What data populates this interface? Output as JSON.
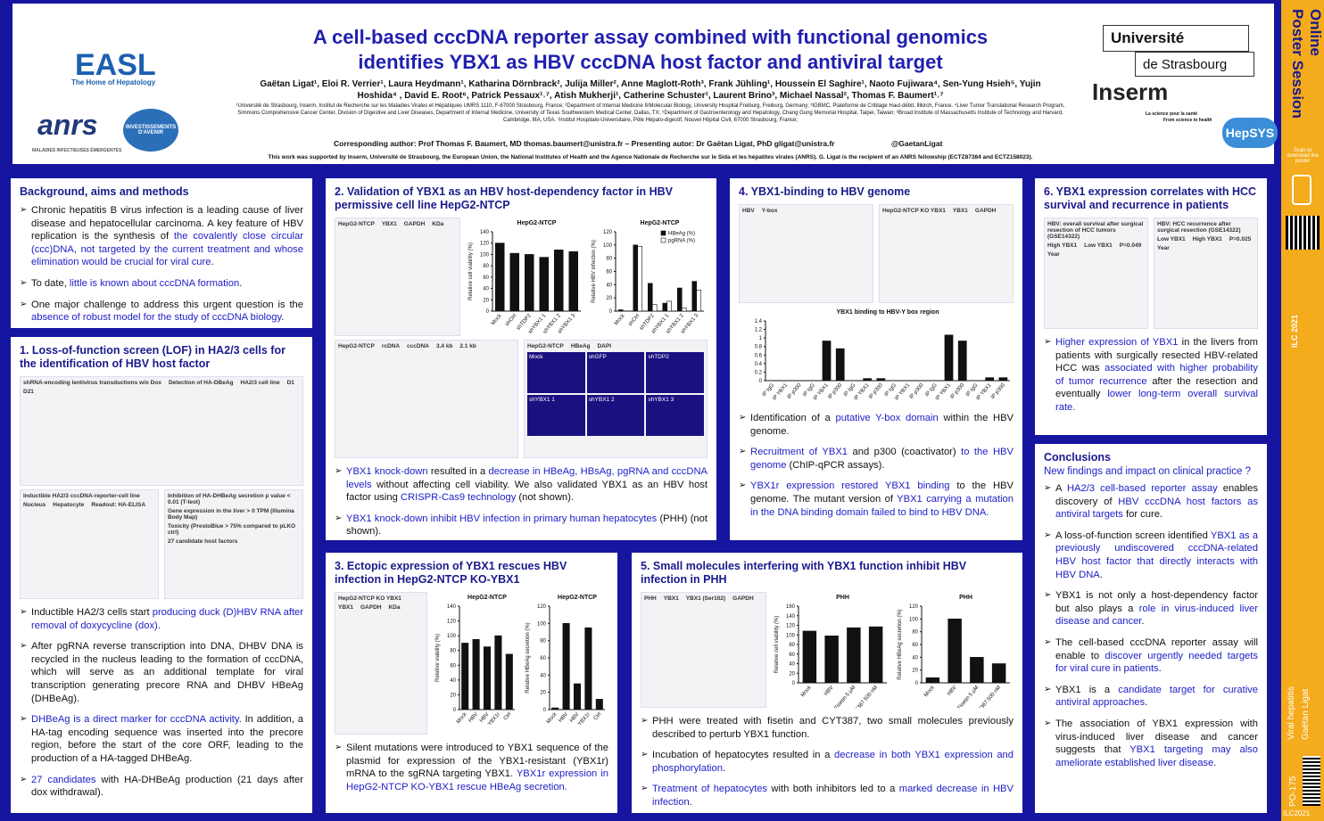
{
  "header": {
    "title": "A cell-based cccDNA reporter assay combined with functional genomics identifies YBX1 as HBV cccDNA host factor and antiviral target",
    "authors": "Gaëtan Ligat¹, Eloi R. Verrier¹, Laura Heydmann¹, Katharina Dörnbrack², Julija Miller², Anne Maglott-Roth³, Frank Jühling¹, Houssein El Saghire¹, Naoto Fujiwara⁴, Sen-Yung Hsieh⁵, Yujin Hoshida⁴ , David E. Root⁶, Patrick Pessaux¹˒⁷, Atish Mukherji¹, Catherine Schuster¹, Laurent Brino³, Michael Nassal², Thomas F. Baumert¹˒⁷",
    "affiliations": "¹Université de Strasbourg, Inserm, Institut de Recherche sur les Maladies Virales et Hépatiques UMRS 1110, F-67000 Strasbourg, France; ²Department of Internal Medicine II/Molecular Biology, University Hospital Freiburg, Freiburg, Germany; ³IGBMC, Plateforme de Criblage Haut-débit, Illkirch, France. ⁴Liver Tumor Translational Research Program, Simmons Comprehensive Cancer Center, Division of Digestive and Liver Diseases, Department of Internal Medicine, University of Texas Southwestern Medical Center, Dallas, TX; ⁵Department of Gastroenterology and Hepatology, Chang Gung Memorial Hospital, Taipei, Taiwan; ⁶Broad Institute of Massachusetts Institute of Technology and Harvard, Cambridge, MA, USA. ⁷Institut Hospitalo-Universitaire, Pôle Hépato-digestif, Nouvel Hôpital Civil, 67000 Strasbourg, France;",
    "corresponding": "Corresponding author: Prof Thomas F. Baumert, MD thomas.baumert@unistra.fr – Presenting autor: Dr Gaëtan Ligat, PhD gligat@unistra.fr",
    "twitter": "@GaetanLigat",
    "support": "This work was supported by Inserm, Université de Strasbourg, the European Union, the National Institutes of Health and the Agence Nationale de Recherche sur le Sida et les hépatites virales (ANRS). G. Ligat is the recipient of an ANRS fellowship (ECTZ87384 and ECTZ158023).",
    "logos": {
      "easl": "EASL",
      "easl_tag": "The Home of Hepatology",
      "anrs": "anrs",
      "anrs_tag": "MALADIES INFECTIEUSES ÉMERGENTES",
      "invest": "INVESTISSEMENTS D'AVENIR",
      "univ1": "Université",
      "univ2": "de Strasbourg",
      "inserm": "Inserm",
      "inserm_tag1": "La science pour la santé",
      "inserm_tag2": "From science to health",
      "hepsys": "HepSYS"
    }
  },
  "sidebar": {
    "brand": "Poster Session Online",
    "scan": "Scan to download the poster",
    "congress": "ILC 2021",
    "topic": "Viral hepatitis",
    "author": "Gaëtan Ligat",
    "code": "PO-175",
    "footer": "ILC2021"
  },
  "highlight_color": "#2020c8",
  "sections": [
    {
      "title": "Background, aims and methods",
      "bullets": [
        [
          "Chronic hepatitis B virus infection is a leading cause of liver disease and hepatocellular carcinoma. A key feature of HBV replication is the synthesis of ",
          {
            "text": "the covalently close circular (ccc)DNA, not targeted by the current treatment and whose elimination would be crucial for viral cure"
          },
          "."
        ],
        [
          "To date, ",
          {
            "text": "little is known about cccDNA formation"
          },
          "."
        ],
        [
          "One major challenge to address this urgent question is the ",
          {
            "text": "absence of robust model for the study of cccDNA biology"
          },
          "."
        ]
      ]
    },
    {
      "title": "1. Loss-of-function screen (LOF) in HA2/3 cells for the identification of HBV host factor",
      "figure": [
        [
          {
            "labels": [
              "shRNA-encoding lentivirus transductions w/o Dox",
              "Detection of HA-DBeAg",
              "HA2/3 cell line",
              "D1",
              "D21"
            ]
          }
        ],
        [
          {
            "labels": [
              "Inductible HA2/3 cccDNA-reporter-cell line",
              "Nucleus",
              "Hepatocyte",
              "Readout: HA-ELISA"
            ]
          },
          {
            "labels": [
              "Inhibition of HA-DHBeAg secretion p value < 0.01 (T-test)",
              "Gene expression in the liver > 0 TPM (Illumina Body Map)",
              "Toxicity (PrestoBlue > 75% compared to pLKO ctrl)",
              "27 candidate host factors"
            ]
          }
        ]
      ],
      "bullets": [
        [
          "Inductible HA2/3 cells start ",
          {
            "text": "producing duck (D)HBV RNA after removal of doxycycline (dox)"
          },
          "."
        ],
        [
          "After pgRNA reverse transcription into DNA, DHBV DNA is recycled in the nucleus leading to the formation of cccDNA, which will serve as an additional template for viral transcription generating precore RNA and DHBV HBeAg (DHBeAg)."
        ],
        [
          {
            "text": "DHBeAg is a direct marker for cccDNA activity"
          },
          ". In addition, a HA-tag encoding sequence was inserted into the precore region, before the start of the core ORF, leading to the production of a HA-tagged DHBeAg."
        ],
        [
          {
            "text": "27 candidates"
          },
          " with HA-DHBeAg production (21 days after dox withdrawal)."
        ]
      ]
    },
    {
      "title": "2. Validation of YBX1 as an HBV host-dependency factor in HBV permissive cell line HepG2-NTCP",
      "figure": [
        [
          {
            "labels": [
              "HepG2-NTCP",
              "YBX1",
              "GAPDH",
              "KDa"
            ]
          },
          {
            "title": "HepG2-NTCP",
            "ylabel": "Relative cell viability (%)",
            "categories": [
              "Mock",
              "shCtrl",
              "shTDP2",
              "shYBX1 1",
              "shYBX1 2",
              "shYBX1 3"
            ],
            "values": [
              120,
              102,
              100,
              95,
              108,
              105
            ],
            "color": "#111111",
            "ylim": [
              0,
              140
            ],
            "yticks": [
              0,
              20,
              40,
              60,
              80,
              100,
              120,
              140
            ]
          },
          {
            "title": "HepG2-NTCP",
            "ylabel": "Relative HBV infection (%)",
            "categories": [
              "Mock",
              "shCtrl",
              "shTDP2",
              "shYBX1 1",
              "shYBX1 2",
              "shYBX1 3"
            ],
            "series": [
              {
                "name": "HBeAg (%)",
                "color": "#111111",
                "values": [
                  2,
                  100,
                  42,
                  12,
                  35,
                  45
                ]
              },
              {
                "name": "pgRNA (%)",
                "color": "#ffffff",
                "values": [
                  0,
                  98,
                  10,
                  15,
                  5,
                  32
                ]
              }
            ],
            "ylim": [
              0,
              120
            ],
            "yticks": [
              0,
              20,
              40,
              60,
              80,
              100,
              120
            ]
          }
        ],
        [
          {
            "labels": [
              "HepG2-NTCP",
              "rcDNA",
              "cccDNA",
              "3.4 kb",
              "2.1 kb"
            ]
          },
          {
            "labels": [
              "HepG2-NTCP",
              "HBeAg",
              "DAPI"
            ],
            "images": [
              "Mock",
              "shGFP",
              "shTDP2",
              "shYBX1 1",
              "shYBX1 2",
              "shYBX1 3"
            ]
          }
        ]
      ],
      "bullets": [
        [
          {
            "text": "YBX1 knock-down"
          },
          " resulted in a ",
          {
            "text": "decrease in HBeAg, HBsAg, pgRNA and cccDNA levels"
          },
          " without affecting cell viability. We also validated YBX1 as an HBV host factor using ",
          {
            "text": "CRISPR-Cas9 technology"
          },
          " (not shown)."
        ],
        [
          {
            "text": "YBX1 knock-down inhibit HBV infection in primary human hepatocytes"
          },
          " (PHH) (not shown)."
        ]
      ]
    },
    {
      "title": "3. Ectopic expression of YBX1 rescues HBV infection in HepG2-NTCP KO-YBX1",
      "figure": [
        [
          {
            "labels": [
              "HepG2-NTCP KO YBX1",
              "YBX1",
              "GAPDH",
              "KDa"
            ]
          },
          {
            "title": "HepG2-NTCP",
            "ylabel": "Relative viability (%)",
            "categories": [
              "Mock",
              "HBV",
              "HBV",
              "YBX1r",
              "Ctrl"
            ],
            "values": [
              90,
              95,
              85,
              100,
              75
            ],
            "color": "#111111",
            "ylim": [
              0,
              140
            ],
            "yticks": [
              0,
              20,
              40,
              60,
              80,
              100,
              120,
              140
            ]
          },
          {
            "title": "HepG2-NTCP",
            "ylabel": "Relative HBeAg secretion (%)",
            "categories": [
              "Mock",
              "HBV",
              "HBV",
              "YBX1r",
              "Ctrl"
            ],
            "values": [
              2,
              100,
              30,
              95,
              12
            ],
            "color": "#111111",
            "ylim": [
              0,
              120
            ],
            "yticks": [
              0,
              20,
              40,
              60,
              80,
              100,
              120
            ]
          }
        ]
      ],
      "bullets": [
        [
          "Silent mutations were introduced to YBX1 sequence of the plasmid for expression of the YBX1-resistant (YBX1r) mRNA to the sgRNA targeting YBX1. ",
          {
            "text": "YBX1r expression in HepG2-NTCP KO-YBX1 rescue HBeAg secretion."
          }
        ]
      ]
    },
    {
      "title": "4. YBX1-binding to HBV genome",
      "figure": [
        [
          {
            "labels": [
              "HBV",
              "Y-box"
            ]
          },
          {
            "labels": [
              "HepG2-NTCP KO YBX1",
              "YBX1",
              "GAPDH"
            ]
          }
        ],
        [
          {
            "title": "YBX1 binding to HBV-Y box region",
            "ylabel": "",
            "categories": [
              "IP IgG",
              "IP YBX1",
              "IP p300",
              "IP IgG",
              "IP YBX1",
              "IP p300",
              "IP IgG",
              "IP YBX1",
              "IP p300",
              "IP IgG",
              "IP YBX1",
              "IP p300",
              "IP IgG",
              "IP YBX1",
              "IP p300",
              "IP IgG",
              "IP YBX1",
              "IP p300"
            ],
            "values": [
              0,
              0,
              0,
              0,
              0.93,
              0.75,
              0,
              0.05,
              0.05,
              0,
              0,
              0,
              0,
              1.07,
              0.93,
              0,
              0.07,
              0.07
            ],
            "color": "#111111",
            "ylim": [
              0,
              1.4
            ],
            "yticks": [
              0,
              0.2,
              0.4,
              0.6,
              0.8,
              1,
              1.2,
              1.4
            ]
          }
        ]
      ],
      "bullets": [
        [
          "Identification of a ",
          {
            "text": "putative Y-box domain"
          },
          " within the HBV genome."
        ],
        [
          {
            "text": "Recruitment of YBX1"
          },
          " and p300 (coactivator) ",
          {
            "text": "to the HBV genome"
          },
          " (ChIP-qPCR assays)."
        ],
        [
          {
            "text": "YBX1r expression restored YBX1 binding"
          },
          " to the HBV genome. The mutant version of ",
          {
            "text": "YBX1 carrying a mutation in the DNA binding domain failed to bind to HBV DNA."
          }
        ]
      ]
    },
    {
      "title": "5. Small molecules interfering with YBX1 function inhibit HBV infection in PHH",
      "figure": [
        [
          {
            "labels": [
              "PHH",
              "YBX1",
              "YBX1 (Ser102)",
              "GAPDH"
            ]
          },
          {
            "title": "PHH",
            "ylabel": "Relative cell viability (%)",
            "categories": [
              "Mock",
              "HBV",
              "Fisetin 5 µM",
              "CYT387 500 nM"
            ],
            "values": [
              108,
              98,
              115,
              117
            ],
            "color": "#111111",
            "ylim": [
              0,
              160
            ],
            "yticks": [
              0,
              20,
              40,
              60,
              80,
              100,
              120,
              140,
              160
            ]
          },
          {
            "title": "PHH",
            "ylabel": "Relative HBeAg secretion (%)",
            "categories": [
              "Mock",
              "HBV",
              "Fisetin 5 µM",
              "CYT387 500 nM"
            ],
            "values": [
              8,
              100,
              40,
              30
            ],
            "color": "#111111",
            "ylim": [
              0,
              120
            ],
            "yticks": [
              0,
              20,
              40,
              60,
              80,
              100,
              120
            ]
          }
        ]
      ],
      "bullets": [
        [
          "PHH were treated with fisetin and CYT387, two small molecules previously described to perturb YBX1 function."
        ],
        [
          "Incubation of hepatocytes resulted in a ",
          {
            "text": "decrease in both YBX1 expression and phosphorylation"
          },
          "."
        ],
        [
          {
            "text": "Treatment of hepatocytes"
          },
          " with both inhibitors led to a ",
          {
            "text": "marked decrease in HBV infection"
          },
          "."
        ]
      ]
    },
    {
      "title": "6. YBX1 expression correlates with HCC survival and recurrence in patients",
      "figure": [
        [
          {
            "labels": [
              "HBV: overall survival after surgical resection of HCC tumors (GSE14322)",
              "High YBX1",
              "Low YBX1",
              "P=0.049",
              "Year"
            ]
          },
          {
            "labels": [
              "HBV: HCC recurrence after surgical resection (GSE14322)",
              "Low YBX1",
              "High YBX1",
              "P=0.025",
              "Year"
            ]
          }
        ]
      ],
      "bullets": [
        [
          {
            "text": "Higher expression of YBX1"
          },
          " in the livers from patients with surgically resected HBV-related HCC was ",
          {
            "text": "associated with higher probability of tumor recurrence"
          },
          " after the resection and eventually ",
          {
            "text": "lower long-term overall survival rate"
          },
          "."
        ]
      ]
    },
    {
      "title": "Conclusions",
      "intro": "New findings and impact on clinical practice ?",
      "bullets": [
        [
          "A ",
          {
            "text": "HA2/3 cell-based reporter assay"
          },
          " enables discovery of ",
          {
            "text": "HBV cccDNA host factors as antiviral targets"
          },
          " for cure."
        ],
        [
          "A loss-of-function screen identified ",
          {
            "text": "YBX1 as a previously undiscovered cccDNA-related HBV host factor that directly interacts with HBV DNA"
          },
          "."
        ],
        [
          "YBX1 is not only a host-dependency factor but also plays a ",
          {
            "text": "role in virus-induced liver disease and cancer"
          },
          "."
        ],
        [
          "The cell-based cccDNA reporter assay will enable to ",
          {
            "text": "discover urgently needed targets for viral cure in patients"
          },
          "."
        ],
        [
          "YBX1 is a ",
          {
            "text": "candidate target for curative antiviral approaches"
          },
          "."
        ],
        [
          "The association of YBX1 expression with virus-induced liver disease and cancer suggests that ",
          {
            "text": "YBX1 targeting may also ameliorate established liver disease"
          },
          "."
        ]
      ]
    }
  ]
}
